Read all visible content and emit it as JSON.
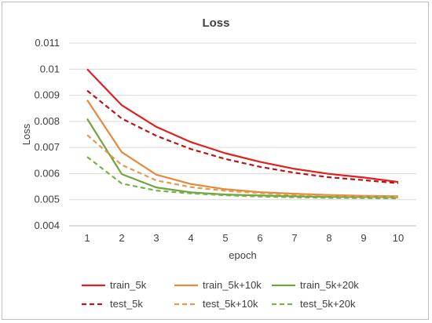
{
  "chart_data": {
    "type": "line",
    "title": "Loss",
    "xlabel": "epoch",
    "ylabel": "Loss",
    "x": [
      1,
      2,
      3,
      4,
      5,
      6,
      7,
      8,
      9,
      10
    ],
    "ylim": [
      0.004,
      0.011
    ],
    "yticks": [
      "0.004",
      "0.005",
      "0.006",
      "0.007",
      "0.008",
      "0.009",
      "0.01",
      "0.011"
    ],
    "grid": "horizontal",
    "legend_position": "bottom",
    "series": [
      {
        "name": "train_5k",
        "color": "#e0201f",
        "dash": false,
        "values": [
          0.01,
          0.00862,
          0.00779,
          0.00721,
          0.00678,
          0.00645,
          0.00618,
          0.00599,
          0.00585,
          0.00568
        ]
      },
      {
        "name": "train_5k+10k",
        "color": "#e58a3c",
        "dash": false,
        "values": [
          0.00882,
          0.00682,
          0.00596,
          0.0056,
          0.0054,
          0.00529,
          0.00523,
          0.00518,
          0.00515,
          0.00513
        ]
      },
      {
        "name": "train_5k+20k",
        "color": "#6fa43e",
        "dash": false,
        "values": [
          0.0081,
          0.00598,
          0.00547,
          0.00528,
          0.0052,
          0.00516,
          0.00513,
          0.00511,
          0.0051,
          0.00509
        ]
      },
      {
        "name": "test_5k",
        "color": "#b8141a",
        "dash": true,
        "values": [
          0.00918,
          0.00811,
          0.00745,
          0.00694,
          0.00656,
          0.00626,
          0.00603,
          0.00586,
          0.00575,
          0.00563
        ]
      },
      {
        "name": "test_5k+10k",
        "color": "#e39a52",
        "dash": true,
        "values": [
          0.00748,
          0.00633,
          0.00574,
          0.00548,
          0.00534,
          0.00525,
          0.00519,
          0.00515,
          0.00513,
          0.00511
        ]
      },
      {
        "name": "test_5k+20k",
        "color": "#78b246",
        "dash": true,
        "values": [
          0.00664,
          0.00562,
          0.00535,
          0.00524,
          0.00517,
          0.00512,
          0.00509,
          0.00507,
          0.00506,
          0.00505
        ]
      }
    ]
  }
}
